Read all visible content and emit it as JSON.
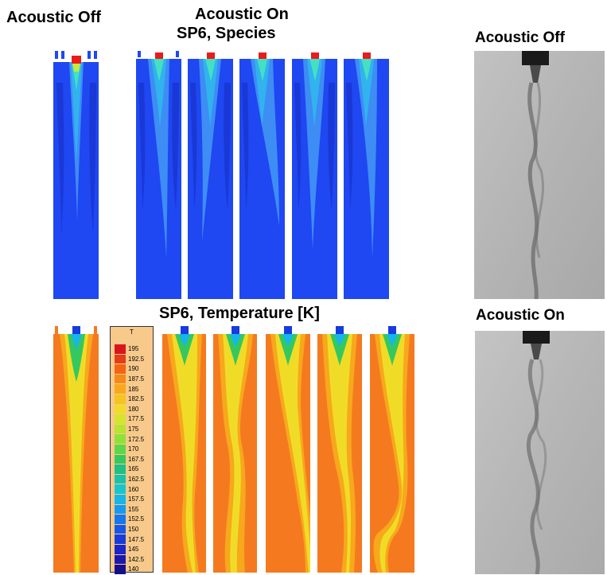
{
  "labels": {
    "acoustic_off_left": "Acoustic Off",
    "acoustic_on_line1": "Acoustic On",
    "acoustic_on_line2": "SP6, Species",
    "temperature_title": "SP6, Temperature [K]",
    "photo_top_title": "Acoustic Off",
    "photo_bottom_title": "Acoustic On"
  },
  "legend": {
    "title": "T",
    "levels": [
      {
        "value": "195",
        "color": "#d9151b"
      },
      {
        "value": "192.5",
        "color": "#e63c17"
      },
      {
        "value": "190",
        "color": "#f26515"
      },
      {
        "value": "187.5",
        "color": "#f58a18"
      },
      {
        "value": "185",
        "color": "#f7a81c"
      },
      {
        "value": "182.5",
        "color": "#f6c322"
      },
      {
        "value": "180",
        "color": "#f0dc27"
      },
      {
        "value": "177.5",
        "color": "#d4e52b"
      },
      {
        "value": "175",
        "color": "#b5e52f"
      },
      {
        "value": "172.5",
        "color": "#8fe13a"
      },
      {
        "value": "170",
        "color": "#5fd649"
      },
      {
        "value": "167.5",
        "color": "#35c85e"
      },
      {
        "value": "165",
        "color": "#1fbf86"
      },
      {
        "value": "162.5",
        "color": "#19c2ad"
      },
      {
        "value": "160",
        "color": "#18c5cf"
      },
      {
        "value": "157.5",
        "color": "#16b6e8"
      },
      {
        "value": "155",
        "color": "#1699f0"
      },
      {
        "value": "152.5",
        "color": "#1676ee"
      },
      {
        "value": "150",
        "color": "#1657e8"
      },
      {
        "value": "147.5",
        "color": "#183bdc"
      },
      {
        "value": "145",
        "color": "#1a26c8"
      },
      {
        "value": "142.5",
        "color": "#1a18ae"
      },
      {
        "value": "140",
        "color": "#160f8c"
      }
    ]
  },
  "colors": {
    "species_background": "#1f47f2",
    "temperature_background": "#f57a1f",
    "photo_background": "#b8b8b8"
  }
}
